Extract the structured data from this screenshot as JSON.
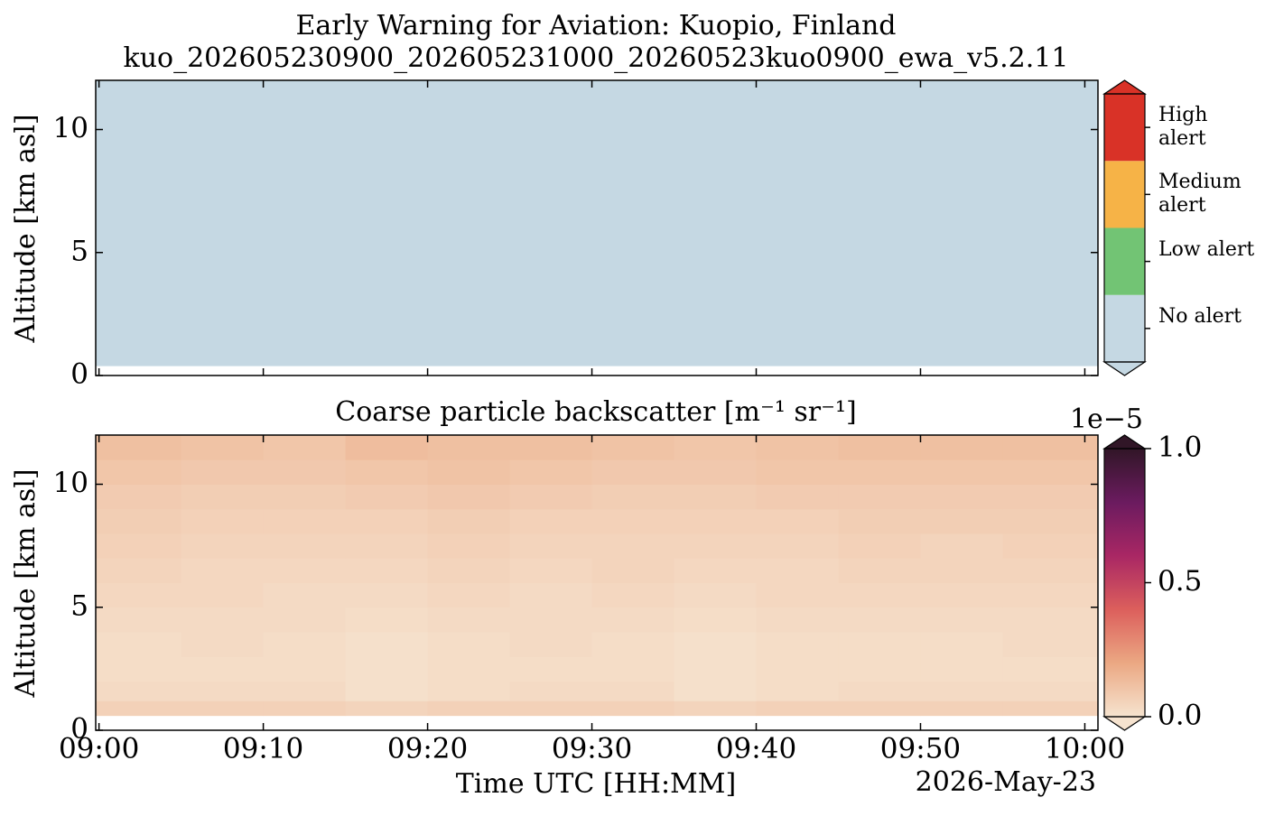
{
  "chart_data": [
    {
      "type": "classification",
      "title": "Early Warning for Aviation: Kuopio, Finland",
      "subtitle": "kuo_202605230900_202605231000_20260523kuo0900_ewa_v5.2.11",
      "ylabel": "Altitude [km asl]",
      "categories": [
        "No alert",
        "Low alert",
        "Medium alert",
        "High alert"
      ],
      "colors": [
        "#c5d8e3",
        "#72c474",
        "#f6b347",
        "#d93227"
      ],
      "x_bins": [
        -0.2,
        60.8
      ],
      "y_bins": [
        0.4,
        12
      ],
      "values": [
        [
          0
        ]
      ],
      "xlim": [
        -0.2,
        60.8
      ],
      "ylim": [
        0,
        12
      ],
      "yticks": [
        0,
        5,
        10
      ]
    },
    {
      "type": "heatmap",
      "title": "Coarse particle backscatter [m⁻¹ sr⁻¹]",
      "xlabel": "Time UTC [HH:MM]",
      "ylabel": "Altitude [km asl]",
      "date": "2026-May-23",
      "colorbar_offset": "1e−5",
      "x_bins": [
        -0.2,
        5,
        10,
        15,
        20,
        25,
        30,
        35,
        40,
        45,
        50,
        55,
        60.8
      ],
      "y_bins": [
        0.6,
        1.2,
        2,
        3,
        4,
        5,
        6,
        7,
        8,
        9,
        10,
        11,
        12
      ],
      "values": [
        [
          0.06,
          0.06,
          0.06,
          0.05,
          0.06,
          0.06,
          0.06,
          0.05,
          0.06,
          0.06,
          0.06,
          0.06
        ],
        [
          0.03,
          0.03,
          0.03,
          0.01,
          0.02,
          0.03,
          0.03,
          0.01,
          0.02,
          0.03,
          0.03,
          0.03
        ],
        [
          0.02,
          0.02,
          0.02,
          0.01,
          0.02,
          0.02,
          0.02,
          0.01,
          0.02,
          0.02,
          0.02,
          0.02
        ],
        [
          0.02,
          0.03,
          0.02,
          0.01,
          0.02,
          0.03,
          0.02,
          0.01,
          0.02,
          0.02,
          0.02,
          0.03
        ],
        [
          0.03,
          0.03,
          0.03,
          0.02,
          0.03,
          0.03,
          0.03,
          0.02,
          0.03,
          0.03,
          0.03,
          0.03
        ],
        [
          0.04,
          0.04,
          0.03,
          0.03,
          0.04,
          0.03,
          0.04,
          0.03,
          0.04,
          0.04,
          0.04,
          0.04
        ],
        [
          0.05,
          0.04,
          0.04,
          0.04,
          0.05,
          0.04,
          0.05,
          0.04,
          0.04,
          0.05,
          0.05,
          0.05
        ],
        [
          0.06,
          0.05,
          0.05,
          0.05,
          0.06,
          0.05,
          0.05,
          0.05,
          0.05,
          0.06,
          0.05,
          0.06
        ],
        [
          0.07,
          0.06,
          0.06,
          0.06,
          0.07,
          0.06,
          0.06,
          0.06,
          0.06,
          0.07,
          0.07,
          0.07
        ],
        [
          0.08,
          0.07,
          0.07,
          0.08,
          0.09,
          0.08,
          0.07,
          0.07,
          0.08,
          0.08,
          0.08,
          0.08
        ],
        [
          0.1,
          0.09,
          0.09,
          0.1,
          0.11,
          0.1,
          0.09,
          0.09,
          0.1,
          0.1,
          0.1,
          0.1
        ],
        [
          0.12,
          0.11,
          0.1,
          0.13,
          0.12,
          0.12,
          0.11,
          0.1,
          0.11,
          0.12,
          0.12,
          0.12
        ]
      ],
      "colors": [
        "#f6e3cf",
        "#eba883",
        "#dc5f5c",
        "#a92764",
        "#6b1b5f",
        "#311627"
      ],
      "zlim": [
        0,
        1
      ],
      "zticks": [
        {
          "value": 0,
          "label": "0.0"
        },
        {
          "value": 0.5,
          "label": "0.5"
        },
        {
          "value": 1,
          "label": "1.0"
        }
      ],
      "xlim": [
        -0.2,
        60.8
      ],
      "ylim": [
        0,
        12
      ],
      "xticks": [
        {
          "value": 0,
          "label": "09:00"
        },
        {
          "value": 10,
          "label": "09:10"
        },
        {
          "value": 20,
          "label": "09:20"
        },
        {
          "value": 30,
          "label": "09:30"
        },
        {
          "value": 40,
          "label": "09:40"
        },
        {
          "value": 50,
          "label": "09:50"
        },
        {
          "value": 60,
          "label": "10:00"
        }
      ],
      "yticks": [
        0,
        5,
        10
      ]
    }
  ]
}
